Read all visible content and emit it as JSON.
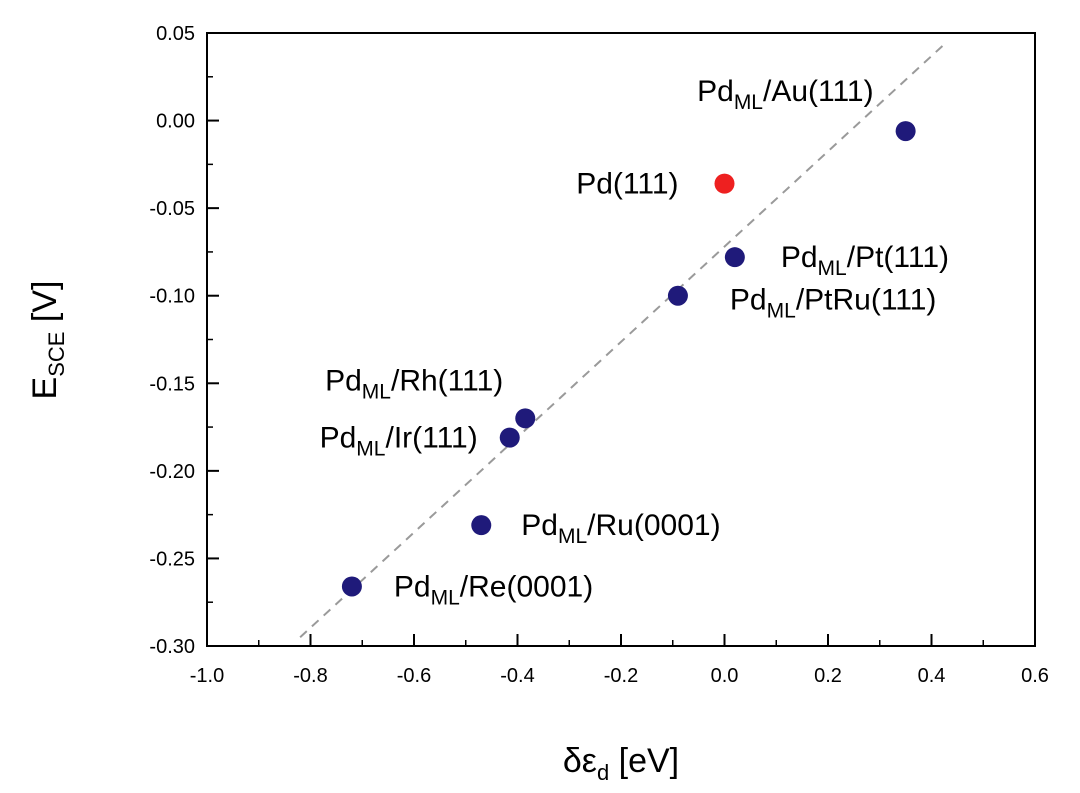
{
  "chart_data": {
    "type": "scatter",
    "xlabel": {
      "main": "δε",
      "sub": "d",
      "unit": " [eV]"
    },
    "ylabel": {
      "main": "E",
      "sub": "SCE",
      "unit": " [V]"
    },
    "xlim": [
      -1.0,
      0.6
    ],
    "ylim": [
      -0.3,
      0.05
    ],
    "xticks": [
      "-1.0",
      "-0.8",
      "-0.6",
      "-0.4",
      "-0.2",
      "0.0",
      "0.2",
      "0.4",
      "0.6"
    ],
    "yticks": [
      "0.05",
      "0.00",
      "-0.05",
      "-0.10",
      "-0.15",
      "-0.20",
      "-0.25",
      "-0.30"
    ],
    "grid": false,
    "fit_line": {
      "x": [
        -0.82,
        0.43
      ],
      "y": [
        -0.295,
        0.045
      ],
      "style": "dashed",
      "color": "#9a9a9a"
    },
    "points": [
      {
        "x": 0.35,
        "y": -0.006,
        "color": "#1f1a7a",
        "label": {
          "main": "Pd",
          "sub": "ML",
          "rest": "/Au(111)"
        }
      },
      {
        "x": 0.0,
        "y": -0.036,
        "color": "#ee2020",
        "label": {
          "main": "Pd(111)",
          "sub": "",
          "rest": ""
        }
      },
      {
        "x": 0.02,
        "y": -0.078,
        "color": "#1f1a7a",
        "label": {
          "main": "Pd",
          "sub": "ML",
          "rest": "/Pt(111)"
        }
      },
      {
        "x": -0.09,
        "y": -0.1,
        "color": "#1f1a7a",
        "label": {
          "main": "Pd",
          "sub": "ML",
          "rest": "/PtRu(111)"
        }
      },
      {
        "x": -0.385,
        "y": -0.17,
        "color": "#1f1a7a",
        "label": {
          "main": "Pd",
          "sub": "ML",
          "rest": "/Rh(111)"
        }
      },
      {
        "x": -0.415,
        "y": -0.181,
        "color": "#1f1a7a",
        "label": {
          "main": "Pd",
          "sub": "ML",
          "rest": "/Ir(111)"
        }
      },
      {
        "x": -0.47,
        "y": -0.231,
        "color": "#1f1a7a",
        "label": {
          "main": "Pd",
          "sub": "ML",
          "rest": "/Ru(0001)"
        }
      },
      {
        "x": -0.72,
        "y": -0.266,
        "color": "#1f1a7a",
        "label": {
          "main": "Pd",
          "sub": "ML",
          "rest": "/Re(0001)"
        }
      }
    ]
  }
}
